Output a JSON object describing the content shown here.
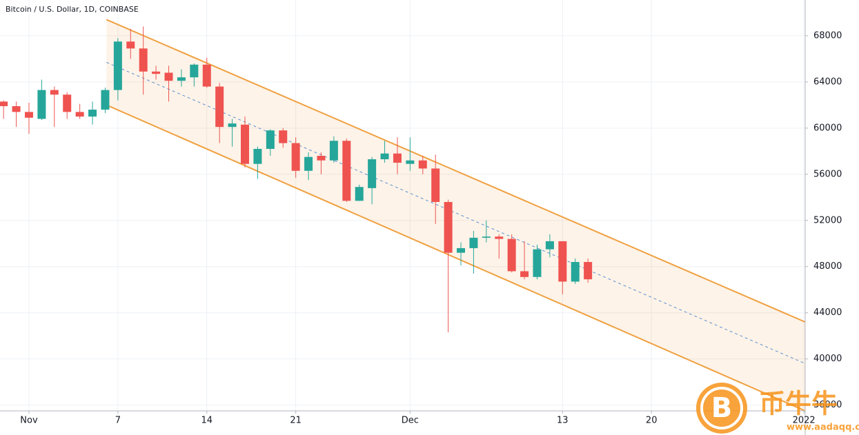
{
  "chart_data": {
    "type": "candlestick",
    "title": "Bitcoin / U.S. Dollar, 1D, COINBASE",
    "x": [
      -2,
      -1,
      0,
      1,
      2,
      3,
      4,
      5,
      6,
      7,
      8,
      9,
      10,
      11,
      12,
      13,
      14,
      15,
      16,
      17,
      18,
      19,
      20,
      21,
      22,
      23,
      24,
      25,
      26,
      27,
      28,
      29,
      30,
      31,
      32,
      33,
      34,
      35,
      36,
      37,
      38,
      39,
      40,
      41,
      42,
      43,
      44
    ],
    "open": [
      62300,
      61900,
      61400,
      60800,
      63300,
      62900,
      61400,
      61000,
      61600,
      63300,
      67500,
      66900,
      64900,
      64800,
      64100,
      64400,
      65500,
      63600,
      60100,
      60300,
      56900,
      58200,
      59800,
      58700,
      56300,
      57600,
      57200,
      58900,
      53700,
      54800,
      57300,
      57800,
      56900,
      57200,
      56500,
      53600,
      49200,
      49600,
      50500,
      50600,
      50400,
      47600,
      47100,
      49500,
      50200,
      46700,
      48400
    ],
    "high": [
      62400,
      62300,
      62200,
      64200,
      63600,
      63100,
      62100,
      62300,
      63500,
      67800,
      68600,
      68800,
      65400,
      65400,
      65100,
      65600,
      66100,
      63900,
      60800,
      61000,
      58400,
      59900,
      60000,
      59200,
      57900,
      57900,
      59300,
      59100,
      55100,
      57500,
      58900,
      59200,
      59200,
      57600,
      57700,
      53800,
      50100,
      51100,
      52000,
      50800,
      50800,
      50200,
      49900,
      50800,
      50200,
      48700,
      48700
    ],
    "low": [
      60800,
      60100,
      59500,
      60700,
      60100,
      60800,
      60800,
      60300,
      61300,
      62400,
      66000,
      62900,
      64200,
      62300,
      63600,
      63600,
      63500,
      58700,
      58400,
      56600,
      55600,
      57600,
      58300,
      55700,
      55500,
      56000,
      57000,
      53600,
      53700,
      53400,
      57000,
      56000,
      56300,
      56000,
      51700,
      42300,
      48100,
      47400,
      50100,
      48700,
      47500,
      46900,
      46900,
      48800,
      45600,
      46500,
      46600
    ],
    "close": [
      61900,
      61400,
      60900,
      63300,
      62900,
      61400,
      61000,
      61600,
      63300,
      67500,
      66900,
      64900,
      64700,
      64100,
      64400,
      65500,
      63600,
      60100,
      60400,
      56900,
      58200,
      59800,
      58700,
      56300,
      57500,
      57200,
      58900,
      53700,
      54900,
      57300,
      57800,
      57000,
      57200,
      56500,
      53600,
      49200,
      49600,
      50500,
      50600,
      50400,
      47600,
      47100,
      49500,
      50200,
      46700,
      48400,
      46900
    ],
    "up_color": "#26a69a",
    "down_color": "#ef5350",
    "channel": {
      "x": [
        6.1,
        61.1
      ],
      "upper": [
        69400,
        43200
      ],
      "mid": [
        65700,
        39600
      ],
      "lower": [
        62000,
        35500
      ],
      "color": "#f0a040",
      "mid_color": "#5b8fd0"
    },
    "xlim": [
      -2.28,
      61.1
    ],
    "xticks": [
      {
        "value": 0,
        "label": "Nov"
      },
      7,
      14,
      21,
      {
        "value": 30,
        "label": "Dec"
      },
      {
        "value": 42,
        "label": "13"
      },
      {
        "value": 49,
        "label": "20"
      },
      {
        "value": 61,
        "label": "2022"
      }
    ],
    "ylim": [
      35500,
      71100
    ],
    "yticks": [
      36000,
      40000,
      44000,
      48000,
      52000,
      56000,
      60000,
      64000,
      68000
    ],
    "grid": true,
    "watermark": {
      "brand": "币牛牛",
      "url": "www.aadaqq.com"
    }
  }
}
